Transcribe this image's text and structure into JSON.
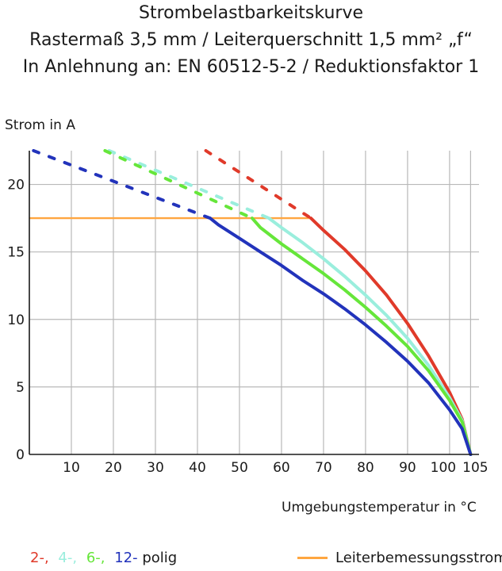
{
  "chart_data": {
    "type": "line",
    "title": "Strombelastbarkeitskurve",
    "subtitle_lines": [
      "Rastermaß 3,5 mm / Leiterquerschnitt 1,5 mm² „f“",
      "In Anlehnung an: EN 60512-5-2 / Reduktionsfaktor 1"
    ],
    "ylabel": "Strom in A",
    "xlabel": "Umgebungstemperatur in °C",
    "xlim": [
      0,
      107
    ],
    "ylim": [
      0,
      22.5
    ],
    "xticks": [
      10,
      20,
      30,
      40,
      50,
      60,
      70,
      80,
      90,
      100,
      105
    ],
    "yticks": [
      0,
      5,
      10,
      15,
      20
    ],
    "grid": true,
    "colors": {
      "2": "#e03a2a",
      "4": "#9aeedd",
      "6": "#66e63a",
      "12": "#2233bb",
      "ref": "#ffa640"
    },
    "series": [
      {
        "name": "2-",
        "color": "#e03a2a",
        "dashed": [
          [
            42,
            22.5
          ],
          [
            67,
            17.5
          ]
        ],
        "solid": [
          [
            67,
            17.5
          ],
          [
            70,
            16.6
          ],
          [
            75,
            15.2
          ],
          [
            80,
            13.6
          ],
          [
            85,
            11.8
          ],
          [
            90,
            9.7
          ],
          [
            95,
            7.3
          ],
          [
            100,
            4.6
          ],
          [
            103,
            2.6
          ],
          [
            105,
            0
          ]
        ]
      },
      {
        "name": "4-",
        "color": "#9aeedd",
        "dashed": [
          [
            19,
            22.5
          ],
          [
            57,
            17.5
          ]
        ],
        "solid": [
          [
            57,
            17.5
          ],
          [
            60,
            16.8
          ],
          [
            65,
            15.7
          ],
          [
            70,
            14.5
          ],
          [
            75,
            13.2
          ],
          [
            80,
            11.8
          ],
          [
            85,
            10.3
          ],
          [
            90,
            8.6
          ],
          [
            95,
            6.6
          ],
          [
            100,
            4.2
          ],
          [
            103,
            2.5
          ],
          [
            105,
            0
          ]
        ]
      },
      {
        "name": "6-",
        "color": "#66e63a",
        "dashed": [
          [
            18,
            22.5
          ],
          [
            53,
            17.5
          ]
        ],
        "solid": [
          [
            53,
            17.5
          ],
          [
            55,
            16.8
          ],
          [
            60,
            15.6
          ],
          [
            65,
            14.5
          ],
          [
            70,
            13.4
          ],
          [
            75,
            12.2
          ],
          [
            80,
            10.9
          ],
          [
            85,
            9.5
          ],
          [
            90,
            8.0
          ],
          [
            95,
            6.2
          ],
          [
            100,
            4.0
          ],
          [
            103,
            2.4
          ],
          [
            105,
            0
          ]
        ]
      },
      {
        "name": "12-",
        "color": "#2233bb",
        "dashed": [
          [
            1,
            22.5
          ],
          [
            43,
            17.5
          ]
        ],
        "solid": [
          [
            43,
            17.5
          ],
          [
            45,
            17.0
          ],
          [
            50,
            16.0
          ],
          [
            55,
            15.0
          ],
          [
            60,
            14.0
          ],
          [
            65,
            12.9
          ],
          [
            70,
            11.9
          ],
          [
            75,
            10.8
          ],
          [
            80,
            9.6
          ],
          [
            85,
            8.3
          ],
          [
            90,
            6.9
          ],
          [
            95,
            5.3
          ],
          [
            100,
            3.3
          ],
          [
            103,
            1.9
          ],
          [
            105,
            0
          ]
        ]
      }
    ],
    "reference_line": {
      "name": "Leiterbemessungsstrom",
      "color": "#ffa640",
      "y": 17.5,
      "x": [
        0,
        67
      ]
    },
    "legend": {
      "placement": "bottom",
      "series_labels": [
        "2-,",
        "4-,",
        "6-,",
        "12-"
      ],
      "suffix": "polig",
      "reference_label": "Leiterbemessungsstrom"
    }
  }
}
